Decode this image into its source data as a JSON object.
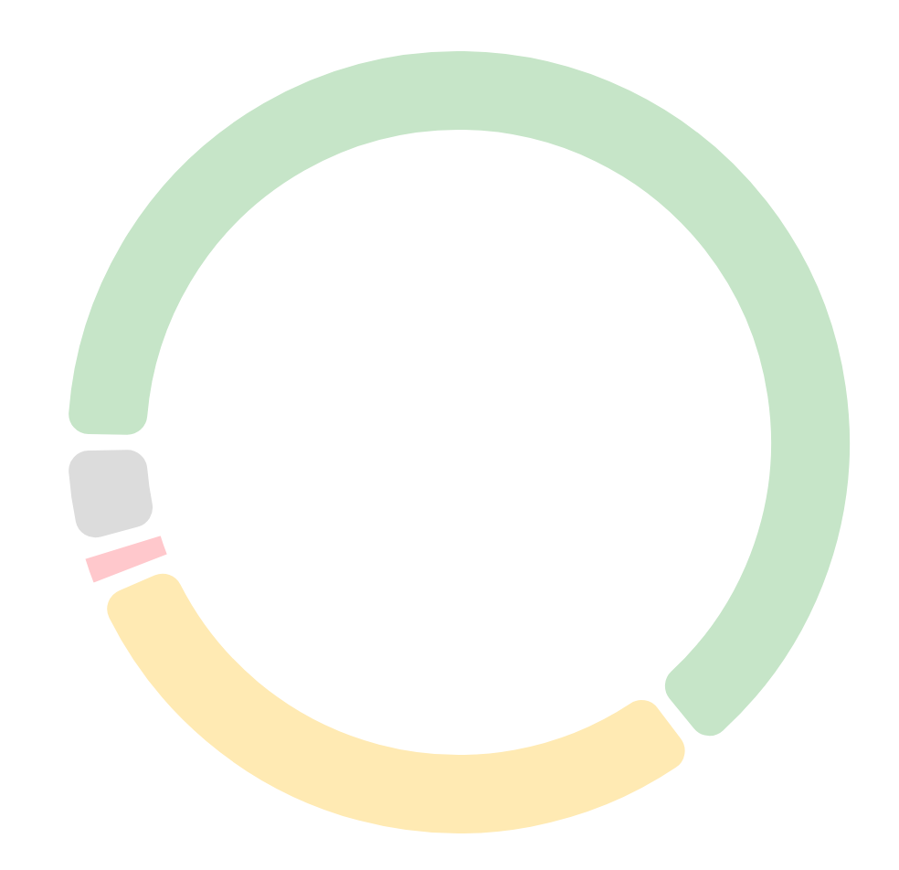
{
  "chart_data": {
    "type": "donut",
    "categories": [
      null,
      null,
      null,
      null
    ],
    "values": [
      65.3,
      29.5,
      1.2,
      4.0
    ],
    "colors": [
      "#c6e5c8",
      "#ffeab3",
      "#ffc8cc",
      "#dcdcdc"
    ]
  }
}
